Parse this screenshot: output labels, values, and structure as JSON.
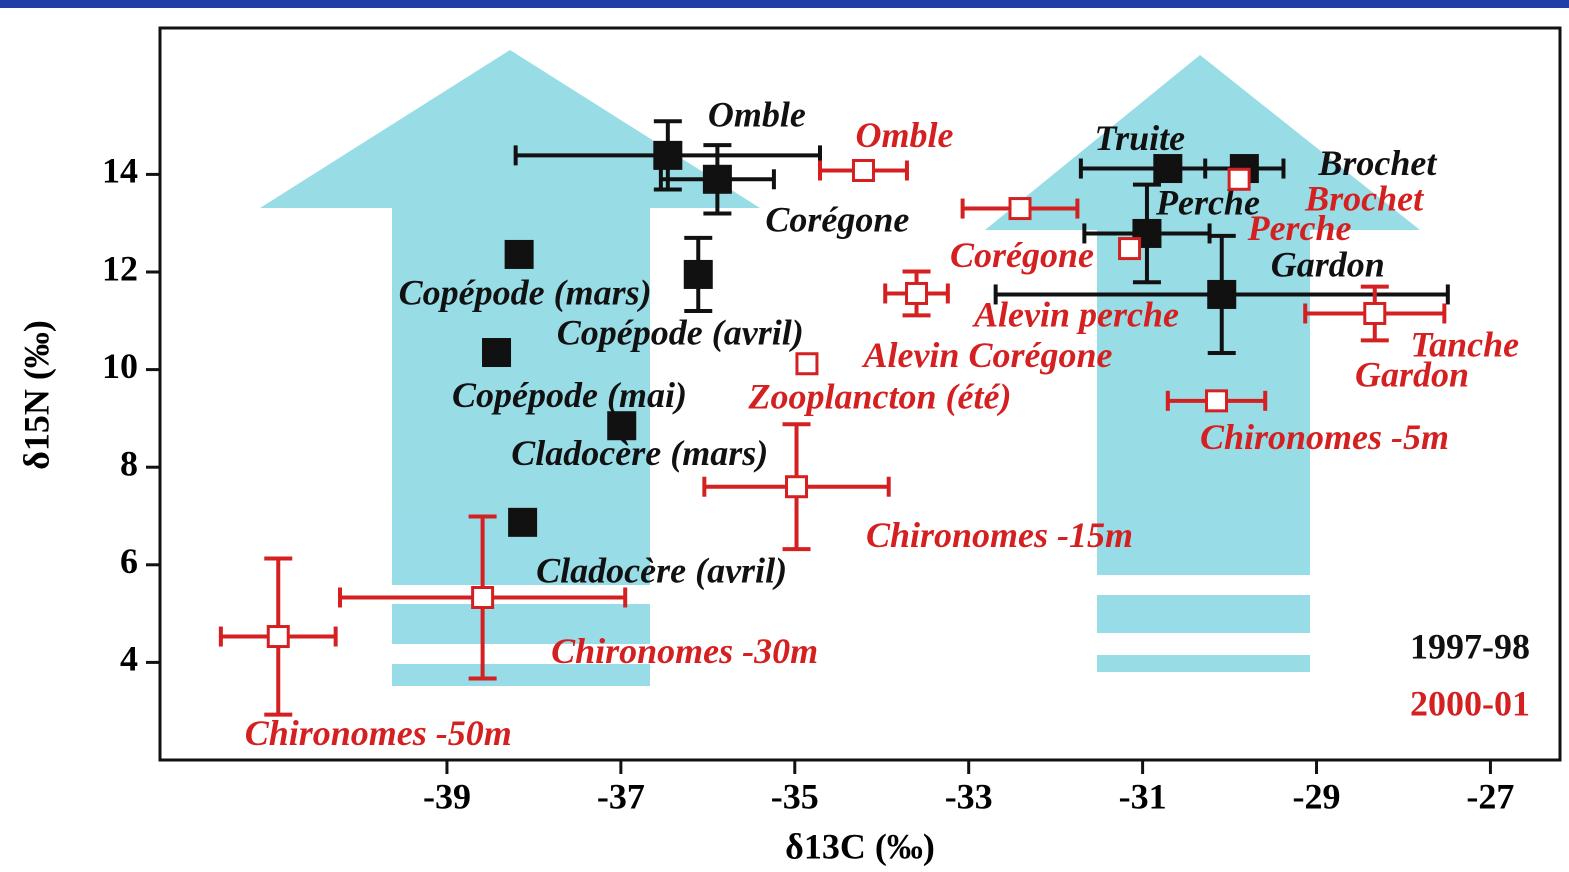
{
  "chart_data": {
    "type": "scatter",
    "x_label": "δ13C (‰)",
    "y_label": "δ15N (‰)",
    "xlim": [
      -42.3,
      -26.2
    ],
    "ylim": [
      2,
      17
    ],
    "xticks": [
      -39,
      -37,
      -35,
      -33,
      -31,
      -29,
      -27
    ],
    "yticks": [
      4,
      6,
      8,
      10,
      12,
      14
    ],
    "series": [
      {
        "name": "1997-98",
        "color": "#111111",
        "marker_fill": "filled",
        "labels": [
          "Omble",
          "Corégone",
          "Copépode (mars)",
          "Copépode (avril)",
          "Copépode (mai)",
          "Cladocère (mars)",
          "Cladocère (avril)",
          "Truite",
          "Brochet",
          "Perche",
          "Gardon"
        ],
        "x": [
          -36.46,
          -35.89,
          -38.17,
          -36.11,
          -38.43,
          -36.99,
          -38.13,
          -30.71,
          -29.83,
          -30.95,
          -30.09
        ],
        "values": [
          14.39,
          13.9,
          12.36,
          11.95,
          10.35,
          8.85,
          6.87,
          14.12,
          14.12,
          12.79,
          11.54
        ],
        "xerr": [
          1.75,
          0.65,
          null,
          null,
          null,
          null,
          null,
          1.0,
          0.45,
          0.72,
          2.6
        ],
        "yerr": [
          0.7,
          0.7,
          null,
          0.75,
          null,
          null,
          null,
          null,
          null,
          1.0,
          1.2
        ]
      },
      {
        "name": "2000-01",
        "color": "#d42020",
        "marker_fill": "open",
        "labels": [
          "Omble",
          "Brochet",
          "Corégone",
          "Perche",
          "Alevin perche",
          "Alevin Corégone",
          "Tanche",
          "Chironomes -5m",
          "Chironomes -15m",
          "Chironomes -30m",
          "Chironomes -50m"
        ],
        "x": [
          -34.21,
          -29.89,
          -32.41,
          -31.15,
          -33.6,
          -34.86,
          -28.33,
          -30.15,
          -34.98,
          -38.59,
          -40.94
        ],
        "values": [
          14.08,
          13.9,
          13.3,
          12.48,
          11.56,
          10.12,
          11.15,
          9.36,
          7.6,
          5.33,
          4.53
        ],
        "xerr": [
          0.5,
          null,
          0.66,
          null,
          0.36,
          null,
          0.8,
          0.56,
          1.06,
          1.64,
          0.66
        ],
        "yerr": [
          null,
          null,
          null,
          null,
          0.45,
          null,
          0.55,
          null,
          1.28,
          1.66,
          1.6
        ]
      }
    ],
    "annotations": [
      {
        "text": "Zooplancton (été)",
        "color": "#d42020"
      },
      {
        "text": "Gardon",
        "color": "#d42020"
      }
    ]
  }
}
